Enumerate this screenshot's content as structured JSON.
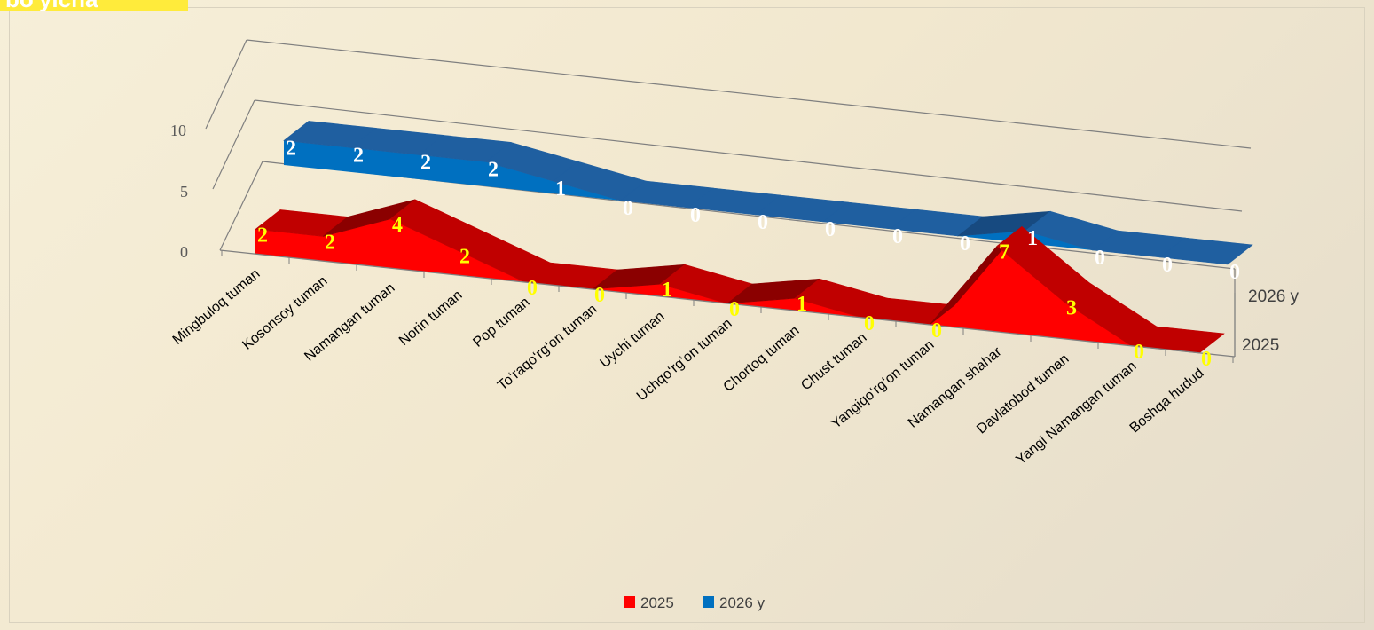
{
  "title_fragment": "bo'yicha",
  "chart_data": {
    "type": "area",
    "categories": [
      "Mingbuloq tuman",
      "Kosonsoy tuman",
      "Namangan tuman",
      "Norin tuman",
      "Pop tuman",
      "To‘raqo‘rg‘on tuman",
      "Uychi tuman",
      "Uchqo‘rg‘on tuman",
      "Chortoq tuman",
      "Chust tuman",
      "Yangiqo‘rg‘on tuman",
      "Namangan shahar",
      "Davlatobod tuman",
      "Yangi Namangan tuman",
      "Boshqa hudud"
    ],
    "series": [
      {
        "name": "2025",
        "color": "#ff0000",
        "values": [
          2,
          2,
          4,
          2,
          0,
          0,
          1,
          0,
          1,
          0,
          0,
          7,
          3,
          0,
          0
        ]
      },
      {
        "name": "2026 y",
        "color": "#0070c0",
        "values": [
          2,
          2,
          2,
          2,
          1,
          0,
          0,
          0,
          0,
          0,
          0,
          1,
          0,
          0,
          0
        ]
      }
    ],
    "yticks": [
      "0",
      "5",
      "10"
    ],
    "ylim": [
      0,
      10
    ],
    "legend_position": "bottom"
  }
}
